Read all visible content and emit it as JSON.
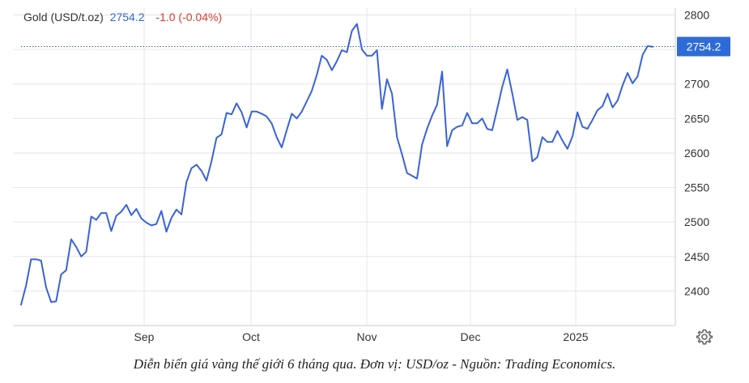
{
  "legend": {
    "name": "Gold (USD/t.oz)",
    "last": "2754.2",
    "change": "-1.0 (-0.04%)"
  },
  "caption": "Diễn biến giá vàng thế giới 6 tháng qua. Đơn vị: USD/oz - Nguồn: Trading Economics.",
  "colors": {
    "line": "#3a63d9",
    "accent": "#2e6bd8",
    "negative": "#e0392b",
    "grid": "#e6e6e6"
  },
  "icons": {
    "settings": "gear-icon"
  },
  "chart_data": {
    "type": "line",
    "series": [
      {
        "name": "Gold (USD/t.oz)",
        "values": [
          2380,
          2408,
          2446,
          2446,
          2444,
          2405,
          2384,
          2385,
          2424,
          2430,
          2475,
          2464,
          2450,
          2457,
          2508,
          2503,
          2513,
          2513,
          2487,
          2509,
          2515,
          2525,
          2510,
          2519,
          2505,
          2499,
          2495,
          2497,
          2516,
          2486,
          2506,
          2518,
          2511,
          2558,
          2578,
          2583,
          2574,
          2560,
          2588,
          2622,
          2627,
          2658,
          2656,
          2672,
          2659,
          2637,
          2660,
          2660,
          2657,
          2653,
          2643,
          2623,
          2608,
          2633,
          2657,
          2650,
          2660,
          2675,
          2690,
          2713,
          2741,
          2735,
          2720,
          2733,
          2749,
          2746,
          2777,
          2787,
          2750,
          2741,
          2741,
          2749,
          2664,
          2707,
          2686,
          2623,
          2598,
          2571,
          2567,
          2563,
          2612,
          2635,
          2654,
          2670,
          2718,
          2610,
          2633,
          2638,
          2640,
          2658,
          2643,
          2643,
          2650,
          2635,
          2633,
          2664,
          2696,
          2721,
          2686,
          2648,
          2652,
          2648,
          2588,
          2594,
          2623,
          2616,
          2616,
          2632,
          2618,
          2606,
          2624,
          2659,
          2638,
          2635,
          2648,
          2662,
          2668,
          2686,
          2666,
          2676,
          2698,
          2716,
          2701,
          2711,
          2742,
          2755,
          2754
        ]
      }
    ],
    "x_ticks": [
      "Sep",
      "Oct",
      "Nov",
      "Dec",
      "2025"
    ],
    "y_ticks": [
      2400,
      2450,
      2500,
      2550,
      2600,
      2650,
      2700,
      2750,
      2800
    ],
    "ylim": [
      2350,
      2810
    ],
    "last_value": 2754.2,
    "grid": true
  }
}
